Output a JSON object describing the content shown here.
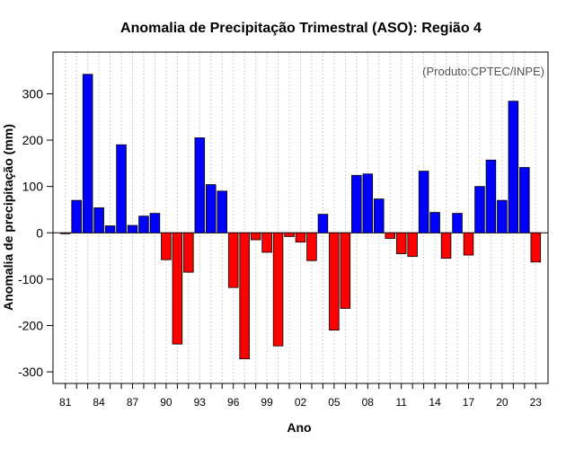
{
  "chart_data": {
    "type": "bar",
    "title": "Anomalia de Precipitação Trimestral (ASO): Região 4",
    "xlabel": "Ano",
    "ylabel": "Anomalia de precipitação (mm)",
    "annotation": "(Produto:CPTEC/INPE)",
    "ylim": [
      -325,
      390
    ],
    "yticks": [
      -300,
      -200,
      -100,
      0,
      100,
      200,
      300
    ],
    "years": [
      1981,
      1982,
      1983,
      1984,
      1985,
      1986,
      1987,
      1988,
      1989,
      1990,
      1991,
      1992,
      1993,
      1994,
      1995,
      1996,
      1997,
      1998,
      1999,
      2000,
      2001,
      2002,
      2003,
      2004,
      2005,
      2006,
      2007,
      2008,
      2009,
      2010,
      2011,
      2012,
      2013,
      2014,
      2015,
      2016,
      2017,
      2018,
      2019,
      2020,
      2021,
      2022,
      2023
    ],
    "values": [
      -2,
      70,
      342,
      54,
      15,
      190,
      16,
      36,
      42,
      -58,
      -240,
      -85,
      205,
      104,
      90,
      -118,
      -272,
      -15,
      -42,
      -244,
      -8,
      -20,
      -60,
      40,
      -210,
      -163,
      124,
      127,
      73,
      -12,
      -45,
      -51,
      133,
      44,
      -55,
      42,
      -48,
      100,
      157,
      70,
      284,
      141,
      -63
    ],
    "xtick_labels": [
      "81",
      "84",
      "87",
      "90",
      "93",
      "96",
      "99",
      "02",
      "05",
      "08",
      "11",
      "14",
      "17",
      "20",
      "23"
    ],
    "colors": {
      "positive": "#0000ff",
      "negative": "#ff0000",
      "grid": "#cccccc"
    },
    "grid": true
  }
}
